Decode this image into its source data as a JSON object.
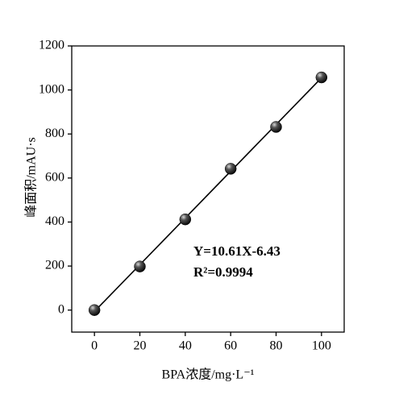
{
  "chart_data": {
    "type": "scatter",
    "xlabel": "BPA浓度/mg·L⁻¹",
    "ylabel": "峰面积/mAU·s",
    "x": [
      0,
      20,
      40,
      60,
      80,
      100
    ],
    "series": [
      {
        "name": "data",
        "color": "#000000",
        "values": [
          0,
          198,
          412,
          642,
          832,
          1057
        ]
      }
    ],
    "fit": {
      "color": "#000000",
      "x": [
        0,
        100
      ],
      "values": [
        -6,
        1055
      ]
    },
    "annotations": [
      "Y=10.61X-6.43",
      "R²=0.9994"
    ],
    "xlim": [
      -10,
      110
    ],
    "xticks": [
      0,
      20,
      40,
      60,
      80,
      100
    ],
    "ylim": [
      -100,
      1200
    ],
    "yticks": [
      0,
      200,
      400,
      600,
      800,
      1000,
      1200
    ],
    "grid": false
  }
}
